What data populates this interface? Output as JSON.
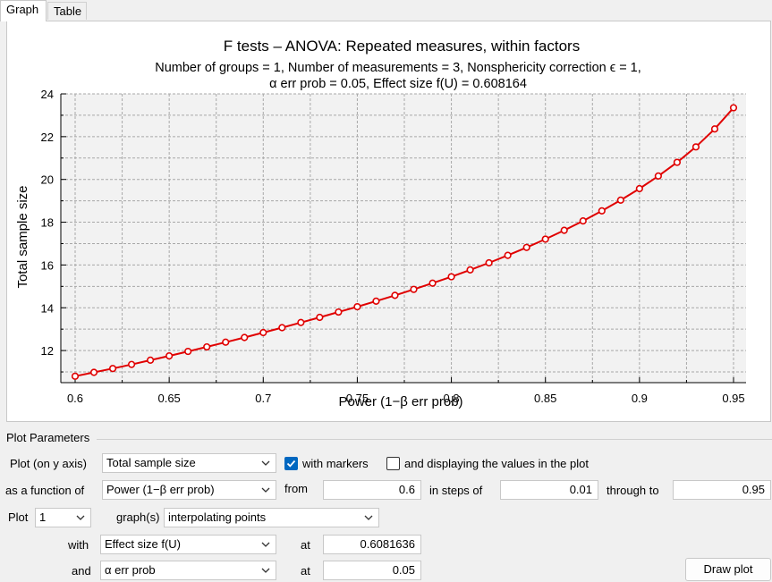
{
  "tabs": [
    {
      "label": "Graph",
      "active": true
    },
    {
      "label": "Table",
      "active": false
    }
  ],
  "chart_data": {
    "type": "line",
    "title": "F tests – ANOVA: Repeated measures, within factors",
    "subtitle_line1": "Number of groups = 1, Number of measurements = 3, Nonsphericity correction ϵ = 1,",
    "subtitle_line2": "α err prob = 0.05, Effect size f(U) = 0.608164",
    "xlabel": "Power (1−β err prob)",
    "ylabel": "Total sample size",
    "xlim": [
      0.6,
      0.95
    ],
    "ylim": [
      10.5,
      24
    ],
    "xticks": [
      "0.6",
      "0.65",
      "0.7",
      "0.75",
      "0.8",
      "0.85",
      "0.9",
      "0.95"
    ],
    "yticks": [
      "12",
      "14",
      "16",
      "18",
      "20",
      "22",
      "24"
    ],
    "grid": true,
    "series": [
      {
        "color": "#e00000",
        "markers": true,
        "x": [
          0.6,
          0.61,
          0.62,
          0.63,
          0.64,
          0.65,
          0.66,
          0.67,
          0.68,
          0.69,
          0.7,
          0.71,
          0.72,
          0.73,
          0.74,
          0.75,
          0.76,
          0.77,
          0.78,
          0.79,
          0.8,
          0.81,
          0.82,
          0.83,
          0.84,
          0.85,
          0.86,
          0.87,
          0.88,
          0.89,
          0.9,
          0.91,
          0.92,
          0.93,
          0.94,
          0.95
        ],
        "y": [
          10.8,
          10.98,
          11.16,
          11.35,
          11.55,
          11.75,
          11.96,
          12.17,
          12.39,
          12.61,
          12.84,
          13.07,
          13.31,
          13.55,
          13.8,
          14.05,
          14.31,
          14.58,
          14.86,
          15.15,
          15.45,
          15.77,
          16.1,
          16.45,
          16.82,
          17.21,
          17.62,
          18.06,
          18.53,
          19.03,
          19.57,
          20.16,
          20.8,
          21.52,
          22.36,
          23.35
        ]
      }
    ]
  },
  "params": {
    "group_title": "Plot Parameters",
    "plot_on_y_label": "Plot (on y axis)",
    "plot_on_y_value": "Total sample size",
    "with_markers_label": "with markers",
    "with_markers_checked": true,
    "display_values_label": "and displaying the values in the plot",
    "display_values_checked": false,
    "as_function_label": "as a function of",
    "as_function_value": "Power (1−β err prob)",
    "from_label": "from",
    "from_value": "0.6",
    "steps_label": "in steps of",
    "steps_value": "0.01",
    "through_label": "through to",
    "through_value": "0.95",
    "plot_label": "Plot",
    "plot_count": "1",
    "graphs_label": "graph(s)",
    "graph_mode": "interpolating points",
    "with_label": "with",
    "with_value": "Effect size f(U)",
    "at_label1": "at",
    "at_value1": "0.6081636",
    "and_label": "and",
    "and_value": "α err prob",
    "at_label2": "at",
    "at_value2": "0.05",
    "draw_button": "Draw plot"
  }
}
